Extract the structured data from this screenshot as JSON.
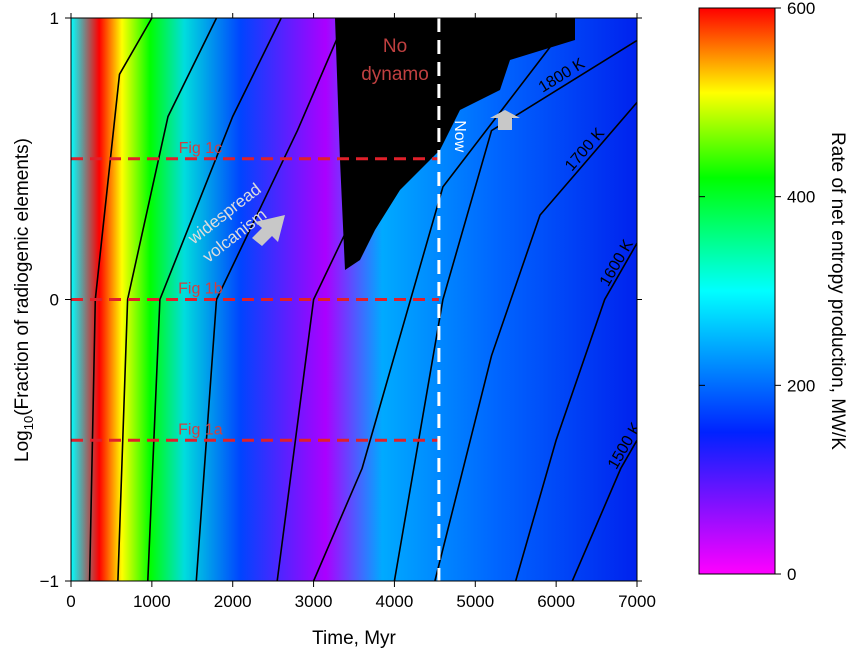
{
  "chart_data": {
    "type": "heatmap",
    "xlabel": "Time, Myr",
    "ylabel_prefix": "Log",
    "ylabel_sub": "10",
    "ylabel_suffix": "(Fraction of radiogenic elements)",
    "xlim": [
      0,
      7000
    ],
    "ylim": [
      -1,
      1
    ],
    "xticks": [
      0,
      1000,
      2000,
      3000,
      4000,
      5000,
      6000,
      7000
    ],
    "yticks": [
      {
        "value": -1,
        "label": "−1"
      },
      {
        "value": 0,
        "label": "0"
      },
      {
        "value": 1,
        "label": "1"
      }
    ],
    "colorbar": {
      "label": "Rate of net entropy production, MW/K",
      "range": [
        0,
        600
      ],
      "ticks": [
        0,
        200,
        400,
        600
      ]
    },
    "color_scale": [
      "#ff00ff",
      "#0022ff",
      "#00ffff",
      "#00ff00",
      "#ffff00",
      "#ff0000"
    ],
    "no_dynamo_color": "#000000",
    "annotations": {
      "no_dynamo": [
        "No",
        "dynamo"
      ],
      "volcanism": [
        "widespread",
        "volcanism"
      ],
      "now": "Now"
    },
    "now_time": 4550,
    "reference_lines": [
      {
        "label": "Fig 1a",
        "y": -0.5,
        "x_end": 4550
      },
      {
        "label": "Fig 1b",
        "y": 0.0,
        "x_end": 4550
      },
      {
        "label": "Fig 1c",
        "y": 0.5,
        "x_end": 4550
      }
    ],
    "contours": [
      {
        "label": "",
        "points": [
          [
            230,
            -1
          ],
          [
            300,
            0
          ],
          [
            600,
            0.8
          ],
          [
            1000,
            1
          ]
        ]
      },
      {
        "label": "",
        "points": [
          [
            580,
            -1
          ],
          [
            700,
            0
          ],
          [
            1200,
            0.65
          ],
          [
            1800,
            1
          ]
        ]
      },
      {
        "label": "",
        "points": [
          [
            950,
            -1
          ],
          [
            1100,
            0
          ],
          [
            2000,
            0.65
          ],
          [
            2600,
            1
          ]
        ]
      },
      {
        "label": "",
        "points": [
          [
            1550,
            -1
          ],
          [
            1800,
            0
          ],
          [
            2800,
            0.6
          ],
          [
            3400,
            1
          ]
        ]
      },
      {
        "label": "",
        "points": [
          [
            2550,
            -1
          ],
          [
            3000,
            0
          ],
          [
            4000,
            0.6
          ],
          [
            5000,
            1
          ]
        ]
      },
      {
        "label": "",
        "points": [
          [
            3000,
            -1
          ],
          [
            3600,
            -0.6
          ],
          [
            4600,
            0.4
          ],
          [
            6200,
            1
          ]
        ]
      },
      {
        "label": "1800 K",
        "points": [
          [
            4000,
            -1
          ],
          [
            4600,
            0
          ],
          [
            5200,
            0.6
          ],
          [
            7000,
            0.92
          ]
        ]
      },
      {
        "label": "1700 K",
        "points": [
          [
            4500,
            -1
          ],
          [
            5200,
            -0.2
          ],
          [
            5800,
            0.3
          ],
          [
            7000,
            0.7
          ]
        ]
      },
      {
        "label": "1600 K",
        "points": [
          [
            5500,
            -1
          ],
          [
            6000,
            -0.5
          ],
          [
            6600,
            0
          ],
          [
            7000,
            0.2
          ]
        ]
      },
      {
        "label": "1500 K",
        "points": [
          [
            6200,
            -1
          ],
          [
            6500,
            -0.8
          ],
          [
            6800,
            -0.6
          ],
          [
            7000,
            -0.5
          ]
        ]
      }
    ]
  }
}
